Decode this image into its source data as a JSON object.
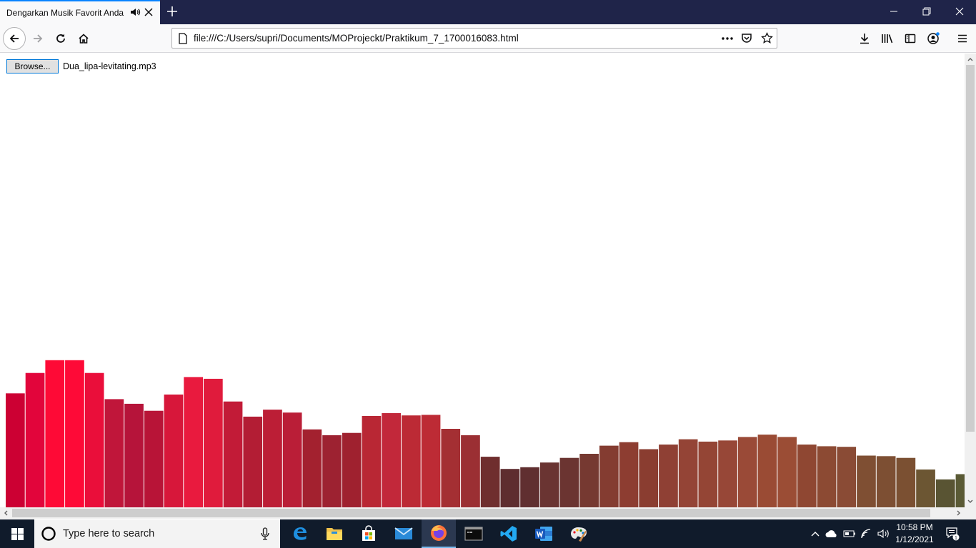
{
  "browser": {
    "tab_title": "Dengarkan Musik Favorit Anda",
    "url": "file:///C:/Users/supri/Documents/MOProjeckt/Praktikum_7_1700016083.html"
  },
  "page": {
    "browse_label": "Browse...",
    "file_name": "Dua_lipa-levitating.mp3"
  },
  "visualizer": {
    "max_level": 255,
    "levels": [
      196,
      231,
      253,
      253,
      231,
      186,
      178,
      166,
      194,
      224,
      221,
      182,
      156,
      168,
      163,
      134,
      124,
      128,
      157,
      162,
      158,
      159,
      135,
      124,
      87,
      66,
      69,
      77,
      85,
      92,
      106,
      112,
      100,
      108,
      117,
      113,
      115,
      121,
      125,
      121,
      108,
      105,
      104,
      89,
      88,
      85,
      65,
      48,
      57
    ],
    "colors": [
      "#cc0033",
      "#e2053b",
      "#fe0a36",
      "#fe0a37",
      "#ea0e3a",
      "#c0163a",
      "#b6143a",
      "#b81437",
      "#d7173a",
      "#e91a3e",
      "#e01b3c",
      "#c21b37",
      "#b31d34",
      "#bc1e36",
      "#ba1e37",
      "#a3212f",
      "#9d2231",
      "#9f212f",
      "#b92734",
      "#c2283a",
      "#bc2a35",
      "#bd2b35",
      "#a42f33",
      "#9b2f33",
      "#6f2e2e",
      "#5e2d2f",
      "#602f30",
      "#6a3432",
      "#6b3431",
      "#763931",
      "#843c31",
      "#8d3d31",
      "#8a3d30",
      "#8f4034",
      "#944436",
      "#944535",
      "#974737",
      "#9a4a37",
      "#9a4b34",
      "#9b4d35",
      "#8f4732",
      "#8c4a33",
      "#8a4b35",
      "#7f4f33",
      "#7d4f33",
      "#7b5032",
      "#6c5633",
      "#595433",
      "#5a5a35"
    ]
  },
  "taskbar": {
    "search_placeholder": "Type here to search",
    "time": "10:58 PM",
    "date": "1/12/2021",
    "notifications": "1"
  }
}
